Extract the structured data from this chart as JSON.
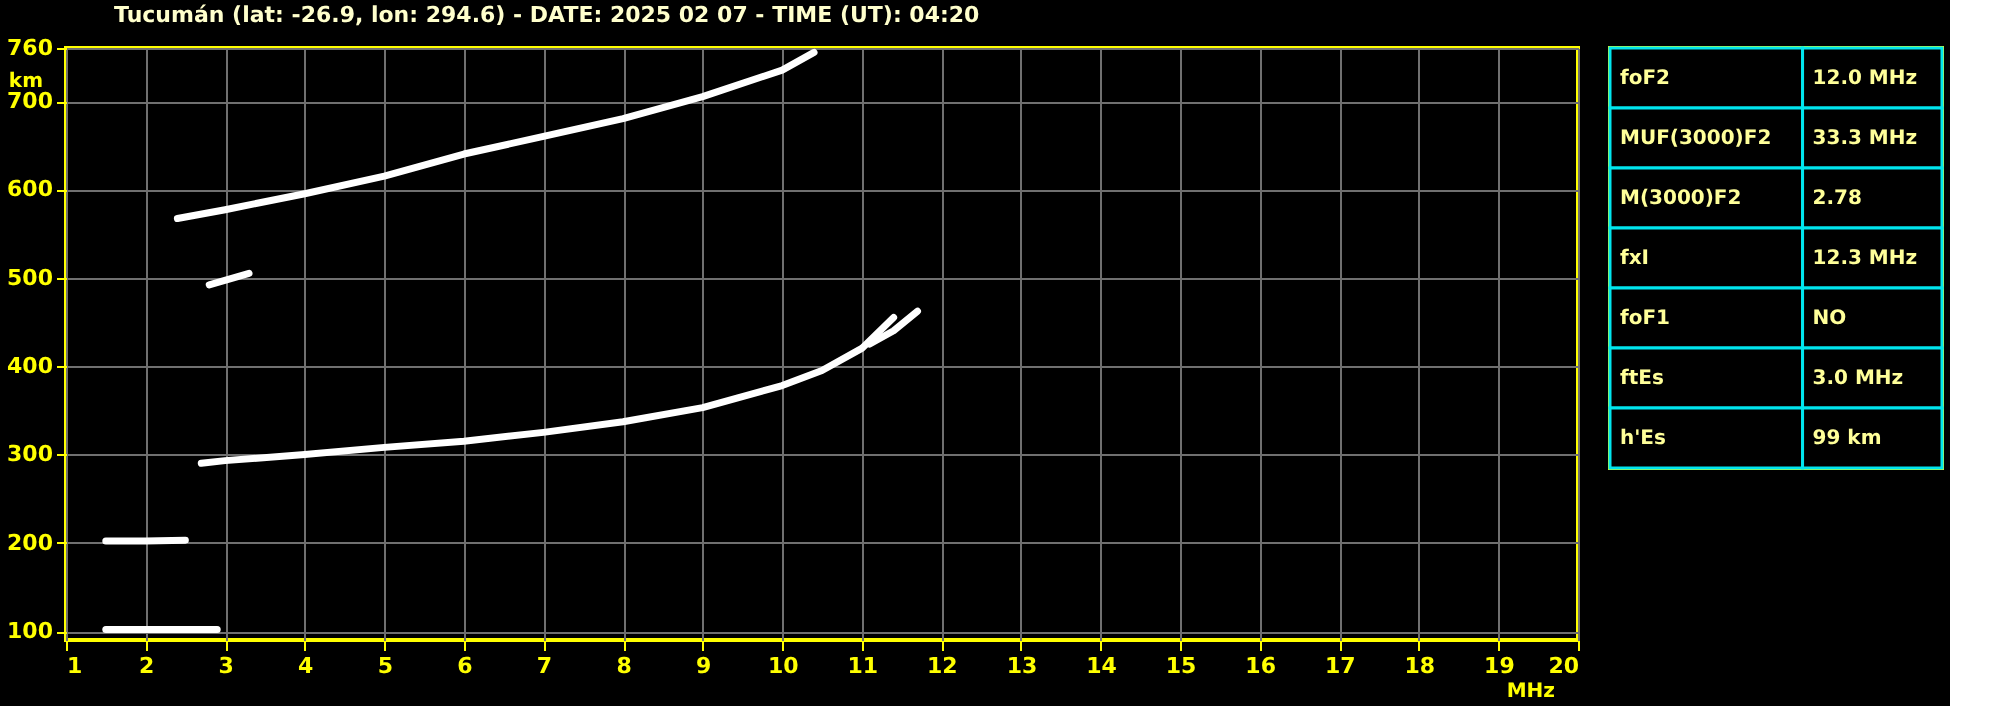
{
  "chart_data": [
    {
      "type": "line",
      "title": "Tucumán (lat: -26.9, lon: 294.6) - DATE: 2025 02 07 - TIME (UT): 04:20",
      "xlabel": "MHz",
      "ylabel": "km",
      "xlim": [
        1,
        20
      ],
      "xticks": [
        1,
        2,
        3,
        4,
        5,
        6,
        7,
        8,
        9,
        10,
        11,
        12,
        13,
        14,
        15,
        16,
        17,
        18,
        19,
        20
      ],
      "ylim": [
        90,
        760
      ],
      "yticks": [
        100,
        200,
        300,
        400,
        500,
        600,
        700,
        760
      ],
      "grid": true,
      "marker": "none",
      "line_style": "solid",
      "series": [
        {
          "color": "#ffffff",
          "x": [
            2.7,
            3,
            4,
            5,
            6,
            7,
            8,
            9,
            10,
            10.5,
            11,
            11.4
          ],
          "values": [
            290,
            293,
            300,
            308,
            315,
            325,
            337,
            353,
            378,
            395,
            420,
            455
          ]
        },
        {
          "color": "#ffffff",
          "x": [
            11.1,
            11.4,
            11.7
          ],
          "values": [
            425,
            440,
            462
          ]
        },
        {
          "color": "#ffffff",
          "x": [
            2.4,
            3,
            4,
            5,
            6,
            7,
            8,
            9,
            10,
            10.4
          ],
          "values": [
            567,
            577,
            595,
            615,
            640,
            660,
            680,
            705,
            735,
            755
          ]
        },
        {
          "color": "#ffffff",
          "x": [
            1.5,
            2,
            2.5,
            2.9
          ],
          "values": [
            102,
            102,
            102,
            102
          ]
        },
        {
          "color": "#ffffff",
          "x": [
            1.5,
            2,
            2.5
          ],
          "values": [
            202,
            202,
            203
          ]
        },
        {
          "color": "#ffffff",
          "x": [
            2.8,
            3.3
          ],
          "values": [
            492,
            505
          ]
        }
      ]
    },
    {
      "type": "other",
      "categories": [
        "foF2",
        "MUF(3000)F2",
        "M(3000)F2",
        "fxI",
        "foF1",
        "ftEs",
        "h'Es"
      ],
      "value_labels": [
        "12.0 MHz",
        "33.3 MHz",
        "2.78",
        "12.3 MHz",
        "NO",
        "3.0 MHz",
        "99 km"
      ]
    }
  ]
}
